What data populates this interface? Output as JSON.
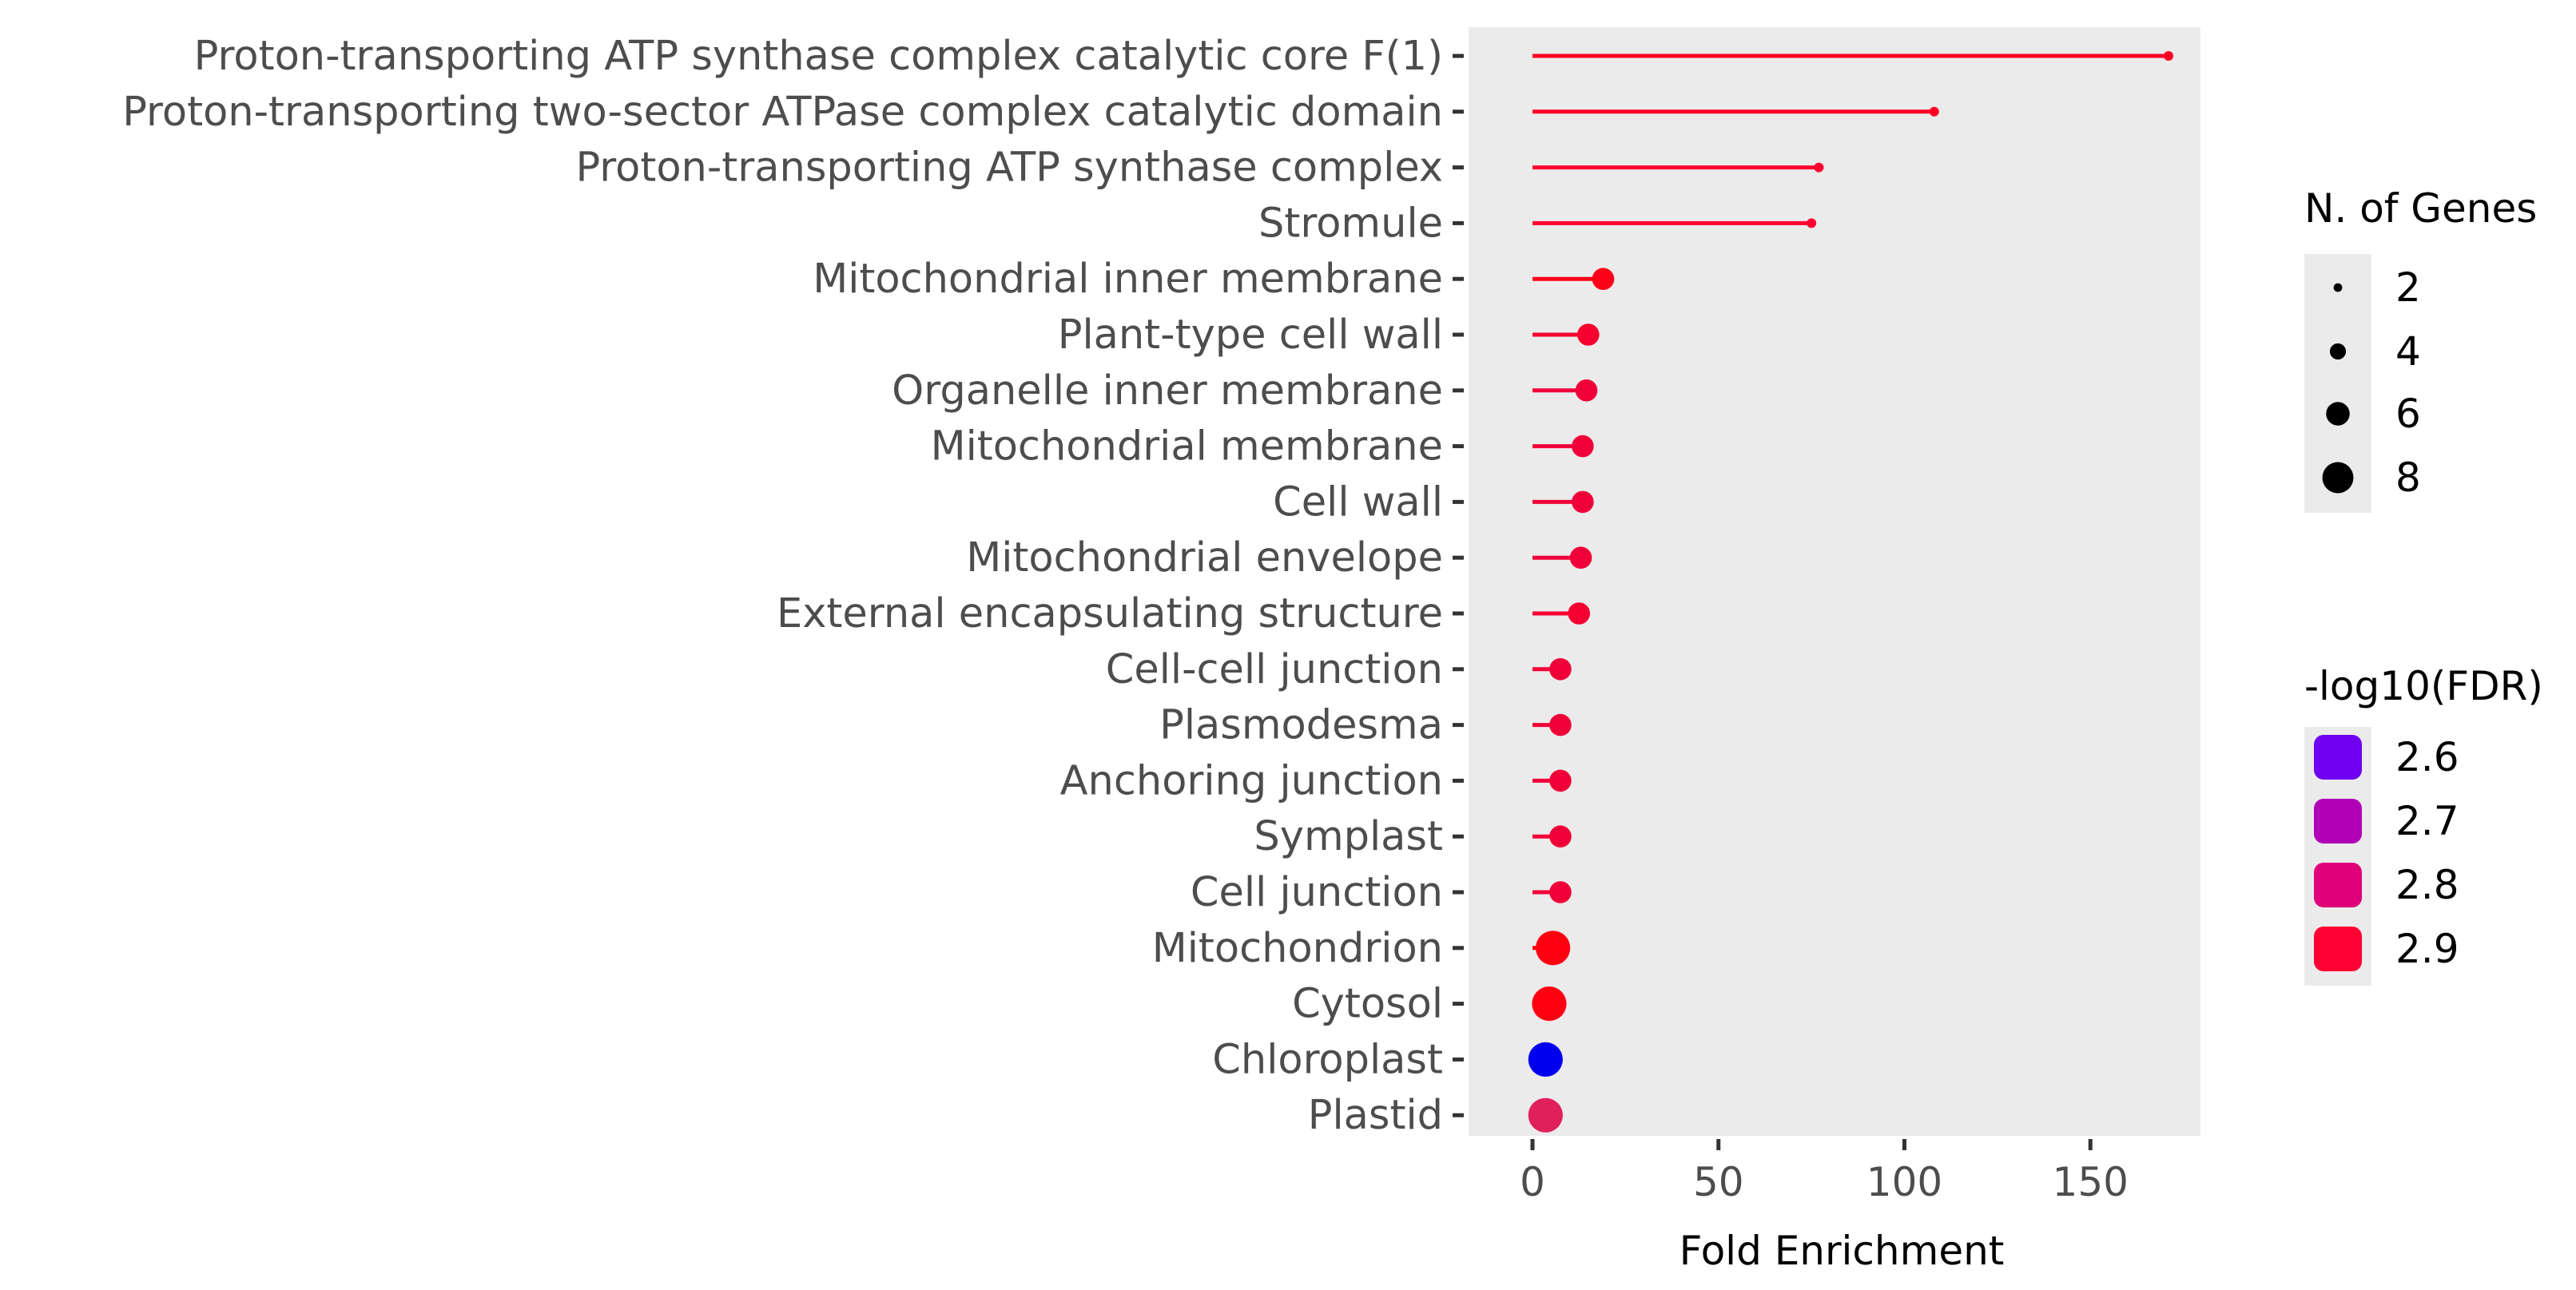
{
  "chart_data": {
    "type": "lollipop",
    "xlabel": "Fold Enrichment",
    "ylabel": "",
    "title": "",
    "xlim": [
      -4,
      180
    ],
    "x_ticks": [
      0,
      50,
      100,
      150
    ],
    "grid": false,
    "panel_background": "#ebebeb",
    "categories": [
      "Proton-transporting ATP synthase complex catalytic core F(1)",
      "Proton-transporting two-sector ATPase complex catalytic domain",
      "Proton-transporting ATP synthase complex",
      "Stromule",
      "Mitochondrial inner membrane",
      "Plant-type cell wall",
      "Organelle inner membrane",
      "Mitochondrial membrane",
      "Cell wall",
      "Mitochondrial envelope",
      "External encapsulating structure",
      "Cell-cell junction",
      "Plasmodesma",
      "Anchoring junction",
      "Symplast",
      "Cell junction",
      "Mitochondrion",
      "Cytosol",
      "Chloroplast",
      "Plastid"
    ],
    "values": [
      171,
      108,
      77,
      75,
      19,
      15,
      14.5,
      13.5,
      13.5,
      13,
      12.5,
      7.5,
      7.5,
      7.5,
      7.5,
      7.5,
      5.5,
      4.5,
      3.5,
      3.5
    ],
    "n_genes": [
      2,
      2,
      2,
      2,
      5,
      5,
      5,
      5,
      5,
      5,
      5,
      5,
      5,
      5,
      5,
      5,
      8,
      8,
      8,
      8
    ],
    "neg_log10_fdr": [
      2.9,
      2.9,
      2.88,
      2.88,
      2.9,
      2.85,
      2.84,
      2.84,
      2.84,
      2.84,
      2.85,
      2.84,
      2.84,
      2.84,
      2.84,
      2.84,
      2.92,
      2.92,
      2.55,
      2.78
    ],
    "colors": [
      "#ff0024",
      "#ff0024",
      "#ff0030",
      "#ff0030",
      "#ff0018",
      "#f5002f",
      "#f00038",
      "#f00038",
      "#f00038",
      "#f00038",
      "#f5002f",
      "#f00038",
      "#f00038",
      "#f00038",
      "#f00038",
      "#f00038",
      "#ff0010",
      "#ff0010",
      "#0000ee",
      "#e0205a"
    ],
    "legends": {
      "size": {
        "title": "N. of Genes",
        "labels": [
          "2",
          "4",
          "6",
          "8"
        ]
      },
      "color": {
        "title": "-log10(FDR)",
        "labels": [
          "2.6",
          "2.7",
          "2.8",
          "2.9"
        ],
        "colors": [
          "#6f00f0",
          "#b000b8",
          "#e0007a",
          "#ff0033"
        ]
      }
    }
  }
}
